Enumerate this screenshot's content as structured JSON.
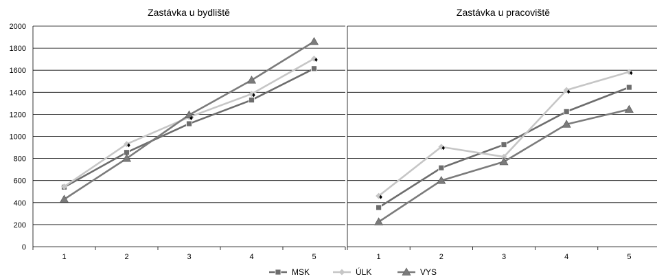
{
  "colors": {
    "MSK": "#6d6d6d",
    "ULK": "#c6c6c6",
    "VYS": "#7b7b7b",
    "grid": "#000000",
    "diamond": "#000000"
  },
  "legend": {
    "items": [
      {
        "key": "MSK",
        "label": "MSK",
        "marker": "square"
      },
      {
        "key": "ULK",
        "label": "ÚLK",
        "marker": "diamond"
      },
      {
        "key": "VYS",
        "label": "VYS",
        "marker": "triangle"
      }
    ],
    "placement": "bottom-center"
  },
  "chart_data": [
    {
      "type": "line",
      "title": "Zastávka u bydliště",
      "xlabel": "",
      "ylabel": "",
      "x": [
        1,
        2,
        3,
        4,
        5
      ],
      "ylim": [
        0,
        2000
      ],
      "yticks": [
        0,
        200,
        400,
        600,
        800,
        1000,
        1200,
        1400,
        1600,
        1800,
        2000
      ],
      "grid": true,
      "series": [
        {
          "name": "MSK",
          "key": "MSK",
          "marker": "square",
          "values": [
            540,
            855,
            1115,
            1330,
            1615
          ]
        },
        {
          "name": "ÚLK",
          "key": "ULK",
          "marker": "diamond",
          "values": [
            545,
            930,
            1175,
            1385,
            1705
          ]
        },
        {
          "name": "VYS",
          "key": "VYS",
          "marker": "triangle",
          "values": [
            430,
            800,
            1195,
            1510,
            1860
          ]
        }
      ],
      "extra_markers": [
        {
          "x": 2,
          "y": 920
        },
        {
          "x": 3,
          "y": 1165
        },
        {
          "x": 4,
          "y": 1375
        },
        {
          "x": 5,
          "y": 1695
        }
      ]
    },
    {
      "type": "line",
      "title": "Zastávka u pracoviště",
      "xlabel": "",
      "ylabel": "",
      "x": [
        1,
        2,
        3,
        4,
        5
      ],
      "ylim": [
        0,
        2000
      ],
      "yticks": [
        0,
        200,
        400,
        600,
        800,
        1000,
        1200,
        1400,
        1600,
        1800,
        2000
      ],
      "grid": true,
      "series": [
        {
          "name": "MSK",
          "key": "MSK",
          "marker": "square",
          "values": [
            355,
            715,
            925,
            1225,
            1445
          ]
        },
        {
          "name": "ÚLK",
          "key": "ULK",
          "marker": "diamond",
          "values": [
            460,
            905,
            815,
            1420,
            1585
          ]
        },
        {
          "name": "VYS",
          "key": "VYS",
          "marker": "triangle",
          "values": [
            225,
            600,
            770,
            1110,
            1245
          ]
        }
      ],
      "extra_markers": [
        {
          "x": 1,
          "y": 450
        },
        {
          "x": 2,
          "y": 895
        },
        {
          "x": 4,
          "y": 1405
        },
        {
          "x": 5,
          "y": 1575
        }
      ]
    }
  ]
}
